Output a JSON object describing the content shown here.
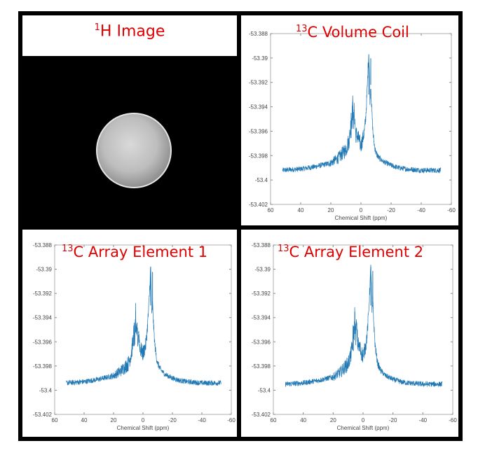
{
  "image_panel": {
    "title_sup": "1",
    "title": "H Image"
  },
  "chart_data": [
    {
      "type": "line",
      "title_sup": "13",
      "title": "C Volume Coil",
      "xlabel": "Chemical Shift (ppm)",
      "ylabel": "",
      "xlim": [
        60,
        -60
      ],
      "ylim": [
        -53.402,
        -53.388
      ],
      "xticks": [
        "60",
        "40",
        "20",
        "0",
        "-20",
        "-40",
        "-60"
      ],
      "yticks": [
        "-53.388",
        "-53.39",
        "-53.392",
        "-53.394",
        "-53.396",
        "-53.398",
        "-53.4",
        "-53.402"
      ],
      "series": [
        {
          "color": "#1f77b4",
          "x": [
            52,
            40,
            30,
            20,
            15,
            10,
            8,
            7,
            6.5,
            6,
            5.5,
            5,
            4.5,
            3.5,
            2,
            0,
            -2,
            -3,
            -4,
            -4.8,
            -5.2,
            -5.6,
            -6,
            -6.5,
            -7,
            -8,
            -9,
            -10,
            -12,
            -15,
            -20,
            -25,
            -30,
            -40,
            -53
          ],
          "y": [
            -53.3992,
            -53.3991,
            -53.3989,
            -53.3986,
            -53.3982,
            -53.3975,
            -53.3968,
            -53.396,
            -53.3945,
            -53.3952,
            -53.3936,
            -53.3954,
            -53.3944,
            -53.3962,
            -53.3965,
            -53.3972,
            -53.3962,
            -53.3952,
            -53.393,
            -53.3905,
            -53.3897,
            -53.391,
            -53.3935,
            -53.3922,
            -53.3938,
            -53.3962,
            -53.3972,
            -53.3978,
            -53.3982,
            -53.3985,
            -53.3988,
            -53.399,
            -53.3991,
            -53.3992,
            -53.3992
          ]
        }
      ]
    },
    {
      "type": "line",
      "title_sup": "13",
      "title": "C Array Element 1",
      "xlabel": "Chemical Shift (ppm)",
      "ylabel": "",
      "xlim": [
        60,
        -60
      ],
      "ylim": [
        -53.402,
        -53.388
      ],
      "xticks": [
        "60",
        "40",
        "20",
        "0",
        "-20",
        "-40",
        "-60"
      ],
      "yticks": [
        "-53.388",
        "-53.39",
        "-53.392",
        "-53.394",
        "-53.396",
        "-53.398",
        "-53.4",
        "-53.402"
      ],
      "series": [
        {
          "color": "#1f77b4",
          "x": [
            52,
            40,
            30,
            20,
            15,
            10,
            8,
            7,
            6,
            5.5,
            5,
            4.5,
            4,
            3.5,
            3,
            2,
            0,
            -2,
            -3,
            -4,
            -4.8,
            -5.2,
            -5.6,
            -6,
            -6.5,
            -7,
            -8,
            -9,
            -10,
            -12,
            -15,
            -20,
            -25,
            -30,
            -40,
            -53
          ],
          "y": [
            -53.3994,
            -53.3993,
            -53.3991,
            -53.3988,
            -53.3984,
            -53.3978,
            -53.397,
            -53.3962,
            -53.395,
            -53.3958,
            -53.3935,
            -53.396,
            -53.3948,
            -53.396,
            -53.3952,
            -53.3965,
            -53.397,
            -53.3962,
            -53.3948,
            -53.393,
            -53.391,
            -53.3898,
            -53.3915,
            -53.394,
            -53.3928,
            -53.3942,
            -53.3962,
            -53.3972,
            -53.3978,
            -53.3983,
            -53.3987,
            -53.399,
            -53.3992,
            -53.3993,
            -53.3994,
            -53.3994
          ]
        }
      ]
    },
    {
      "type": "line",
      "title_sup": "13",
      "title": "C Array Element 2",
      "xlabel": "Chemical Shift (ppm)",
      "ylabel": "",
      "xlim": [
        60,
        -60
      ],
      "ylim": [
        -53.402,
        -53.388
      ],
      "xticks": [
        "60",
        "40",
        "20",
        "0",
        "-20",
        "-40",
        "-60"
      ],
      "yticks": [
        "-53.388",
        "-53.39",
        "-53.392",
        "-53.394",
        "-53.396",
        "-53.398",
        "-53.4",
        "-53.402"
      ],
      "series": [
        {
          "color": "#1f77b4",
          "x": [
            52,
            40,
            30,
            20,
            15,
            10,
            8,
            7,
            6.5,
            6,
            5.5,
            5,
            4.5,
            3.5,
            2,
            0,
            -2,
            -3,
            -4,
            -4.8,
            -5.2,
            -5.6,
            -6,
            -6.5,
            -7,
            -8,
            -9,
            -10,
            -12,
            -15,
            -20,
            -25,
            -30,
            -40,
            -53
          ],
          "y": [
            -53.3995,
            -53.3994,
            -53.3992,
            -53.3989,
            -53.3985,
            -53.3978,
            -53.397,
            -53.3962,
            -53.3948,
            -53.3955,
            -53.3935,
            -53.3958,
            -53.3946,
            -53.3962,
            -53.3966,
            -53.3972,
            -53.3962,
            -53.395,
            -53.393,
            -53.3908,
            -53.3898,
            -53.3912,
            -53.3938,
            -53.3925,
            -53.394,
            -53.3962,
            -53.3972,
            -53.3979,
            -53.3984,
            -53.3988,
            -53.3991,
            -53.3993,
            -53.3994,
            -53.3995,
            -53.3995
          ]
        }
      ]
    }
  ]
}
